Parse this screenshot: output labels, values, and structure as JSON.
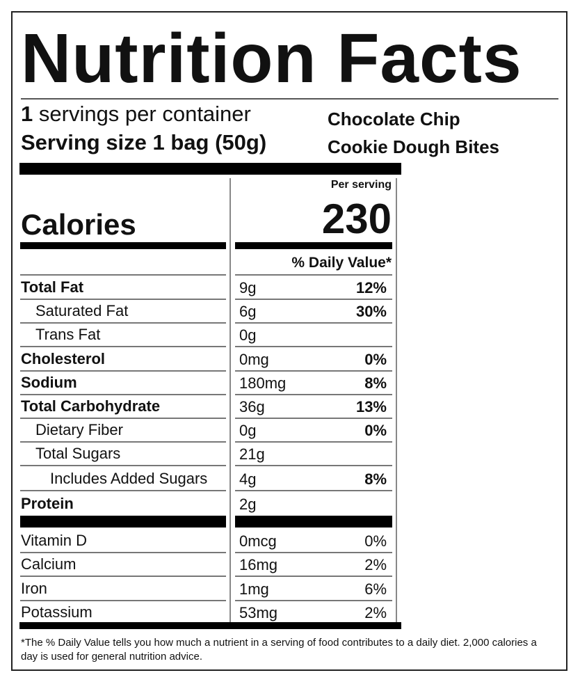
{
  "label": {
    "title": "Nutrition Facts",
    "servings_count": "1",
    "servings_text": "servings per container",
    "serving_size": "Serving size 1 bag (50g)",
    "product_line1": "Chocolate Chip",
    "product_line2": "Cookie Dough Bites",
    "per_serving": "Per serving",
    "calories_label": "Calories",
    "calories_value": "230",
    "daily_value_header": "% Daily Value*"
  },
  "nutrients": [
    {
      "name": "Total Fat",
      "amount": "9g",
      "dv": "12%"
    },
    {
      "name": "Saturated Fat",
      "amount": "6g",
      "dv": "30%"
    },
    {
      "name": "Trans Fat",
      "amount": "0g",
      "dv": ""
    },
    {
      "name": "Cholesterol",
      "amount": "0mg",
      "dv": "0%"
    },
    {
      "name": "Sodium",
      "amount": "180mg",
      "dv": "8%"
    },
    {
      "name": "Total Carbohydrate",
      "amount": "36g",
      "dv": "13%"
    },
    {
      "name": "Dietary Fiber",
      "amount": "0g",
      "dv": "0%"
    },
    {
      "name": "Total Sugars",
      "amount": "21g",
      "dv": ""
    },
    {
      "name": "Includes Added Sugars",
      "amount": "4g",
      "dv": "8%"
    },
    {
      "name": "Protein",
      "amount": "2g",
      "dv": ""
    }
  ],
  "vitamins": [
    {
      "name": "Vitamin D",
      "amount": "0mcg",
      "dv": "0%"
    },
    {
      "name": "Calcium",
      "amount": "16mg",
      "dv": "2%"
    },
    {
      "name": "Iron",
      "amount": "1mg",
      "dv": "6%"
    },
    {
      "name": "Potassium",
      "amount": "53mg",
      "dv": "2%"
    }
  ],
  "footnote": "*The % Daily Value tells you how much a nutrient in a serving of food contributes to a daily diet. 2,000 calories a day is used for general nutrition advice."
}
